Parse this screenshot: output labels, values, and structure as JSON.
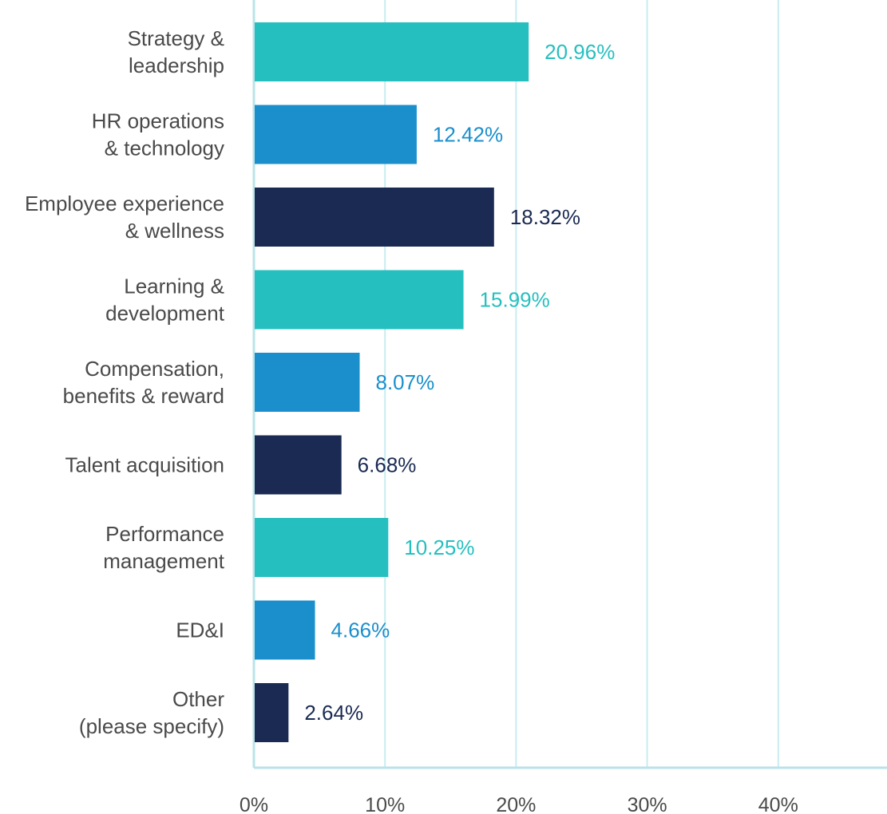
{
  "chart_data": {
    "type": "bar",
    "orientation": "horizontal",
    "categories": [
      [
        "Strategy &",
        "leadership"
      ],
      [
        "HR operations",
        "& technology"
      ],
      [
        "Employee experience",
        "& wellness"
      ],
      [
        "Learning &",
        "development"
      ],
      [
        "Compensation,",
        "benefits & reward"
      ],
      [
        "Talent acquisition"
      ],
      [
        "Performance",
        "management"
      ],
      [
        "ED&I"
      ],
      [
        "Other",
        "(please specify)"
      ]
    ],
    "values": [
      20.96,
      12.42,
      18.32,
      15.99,
      8.07,
      6.68,
      10.25,
      4.66,
      2.64
    ],
    "value_labels": [
      "20.96%",
      "12.42%",
      "18.32%",
      "15.99%",
      "8.07%",
      "6.68%",
      "10.25%",
      "4.66%",
      "2.64%"
    ],
    "bar_colors": [
      "#26bfbf",
      "#1a8fcc",
      "#1a2a52",
      "#26bfbf",
      "#1a8fcc",
      "#1a2a52",
      "#26bfbf",
      "#1a8fcc",
      "#1a2a52"
    ],
    "x_ticks": [
      0,
      10,
      20,
      30,
      40
    ],
    "x_tick_labels": [
      "0%",
      "10%",
      "20%",
      "30%",
      "40%"
    ],
    "xlim": [
      0,
      48
    ],
    "grid": true,
    "grid_color": "#c9ecf0",
    "axis_color": "#b8e3ea",
    "title": "",
    "xlabel": "",
    "ylabel": ""
  }
}
